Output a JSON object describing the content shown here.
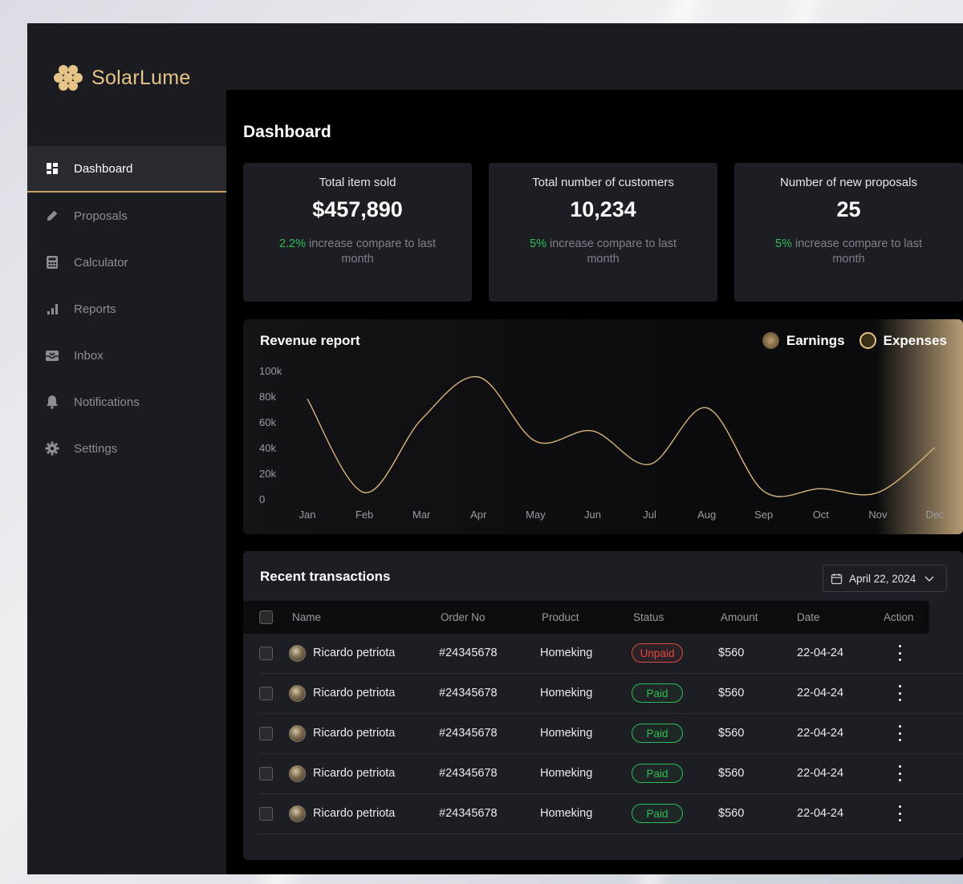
{
  "app": {
    "name": "SolarLume"
  },
  "sidebar": {
    "items": [
      {
        "label": "Dashboard",
        "icon": "dashboard-icon",
        "active": true
      },
      {
        "label": "Proposals",
        "icon": "pencil-icon"
      },
      {
        "label": "Calculator",
        "icon": "calculator-icon"
      },
      {
        "label": "Reports",
        "icon": "bar-chart-icon"
      },
      {
        "label": "Inbox",
        "icon": "inbox-icon"
      },
      {
        "label": "Notifications",
        "icon": "bell-icon"
      },
      {
        "label": "Settings",
        "icon": "gear-icon"
      }
    ]
  },
  "page": {
    "title": "Dashboard"
  },
  "stats": [
    {
      "label": "Total item sold",
      "value": "$457,890",
      "pct": "2.2%",
      "note": " increase compare to last month"
    },
    {
      "label": "Total number of customers",
      "value": "10,234",
      "pct": "5%",
      "note": " increase compare to last month"
    },
    {
      "label": "Number of new proposals",
      "value": "25",
      "pct": "5%",
      "note": " increase compare to last month"
    }
  ],
  "revenue": {
    "title": "Revenue report",
    "legend": [
      {
        "label": "Earnings",
        "icon": "earnings-icon"
      },
      {
        "label": "Expenses",
        "icon": "expenses-icon"
      }
    ]
  },
  "chart_data": {
    "type": "line",
    "x": [
      "Jan",
      "Feb",
      "Mar",
      "Apr",
      "May",
      "Jun",
      "Jul",
      "Aug",
      "Sep",
      "Oct",
      "Nov",
      "Dec"
    ],
    "y_ticks": [
      "100k",
      "80k",
      "60k",
      "40k",
      "20k",
      "0"
    ],
    "ylim": [
      0,
      100000
    ],
    "series": [
      {
        "values": [
          78000,
          5000,
          62000,
          95000,
          45000,
          53000,
          27000,
          71000,
          6000,
          8000,
          5000,
          40000
        ],
        "color": "#d8b57c"
      }
    ],
    "grid": false
  },
  "transactions": {
    "title": "Recent transactions",
    "date_filter": "April 22, 2024",
    "columns": [
      "Name",
      "Order No",
      "Product",
      "Status",
      "Amount",
      "Date",
      "Action"
    ],
    "rows": [
      {
        "name": "Ricardo petriota",
        "order": "#24345678",
        "product": "Homeking",
        "status": "Unpaid",
        "amount": "$560",
        "date": "22-04-24"
      },
      {
        "name": "Ricardo petriota",
        "order": "#24345678",
        "product": "Homeking",
        "status": "Paid",
        "amount": "$560",
        "date": "22-04-24"
      },
      {
        "name": "Ricardo petriota",
        "order": "#24345678",
        "product": "Homeking",
        "status": "Paid",
        "amount": "$560",
        "date": "22-04-24"
      },
      {
        "name": "Ricardo petriota",
        "order": "#24345678",
        "product": "Homeking",
        "status": "Paid",
        "amount": "$560",
        "date": "22-04-24"
      },
      {
        "name": "Ricardo petriota",
        "order": "#24345678",
        "product": "Homeking",
        "status": "Paid",
        "amount": "$560",
        "date": "22-04-24"
      }
    ]
  },
  "colors": {
    "accent": "#c8a15f",
    "positive": "#2fbd57",
    "negative": "#e0483e"
  }
}
